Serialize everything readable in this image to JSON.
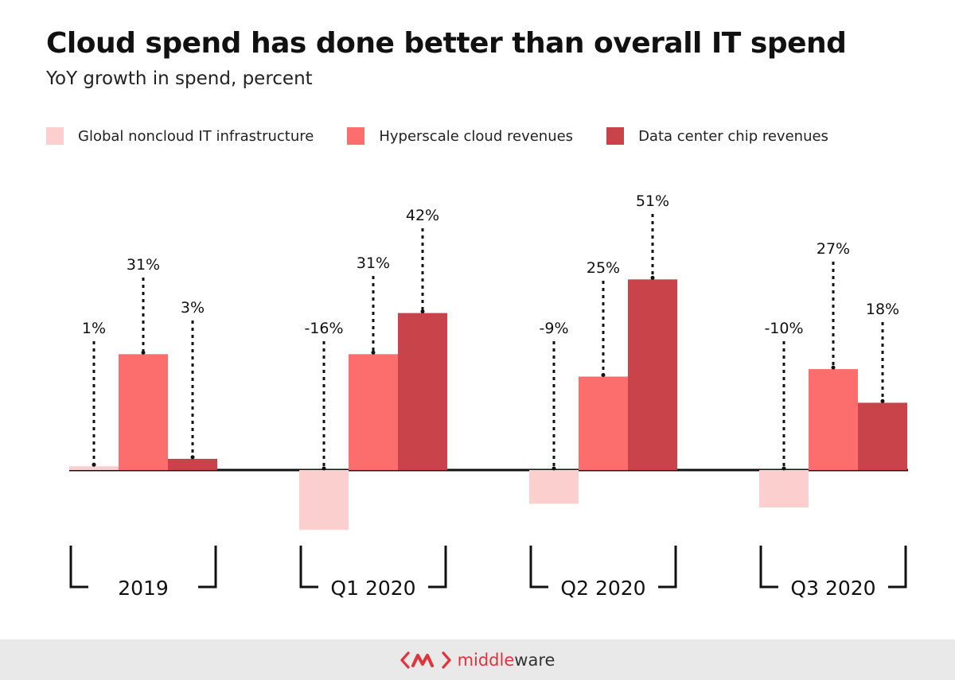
{
  "title": "Cloud spend has done better than overall IT spend",
  "subtitle": "YoY growth in spend, percent",
  "colors": {
    "noncloud": "#fccfcf",
    "hyperscale": "#fc6e6e",
    "chip": "#c9444a",
    "axis": "#111111",
    "brand": "#e2343c"
  },
  "chart_data": {
    "type": "bar",
    "title": "Cloud spend has done better than overall IT spend",
    "ylabel": "YoY growth in spend, percent",
    "categories": [
      "2019",
      "Q1 2020",
      "Q2 2020",
      "Q3 2020"
    ],
    "series": [
      {
        "key": "noncloud",
        "name": "Global noncloud IT infrastructure",
        "values": [
          1,
          -16,
          -9,
          -10
        ],
        "labels": [
          "1%",
          "-16%",
          "-9%",
          "-10%"
        ]
      },
      {
        "key": "hyperscale",
        "name": "Hyperscale cloud revenues",
        "values": [
          31,
          31,
          25,
          27
        ],
        "labels": [
          "31%",
          "31%",
          "25%",
          "27%"
        ]
      },
      {
        "key": "chip",
        "name": "Data center chip revenues",
        "values": [
          3,
          42,
          51,
          18
        ],
        "labels": [
          "3%",
          "42%",
          "51%",
          "18%"
        ]
      }
    ],
    "ylim": [
      -20,
      55
    ],
    "legend_position": "top-left",
    "grid": false
  },
  "footer": {
    "brand_part1": "middle",
    "brand_part2": "ware",
    "logo_icon": "middleware-logo-icon"
  }
}
